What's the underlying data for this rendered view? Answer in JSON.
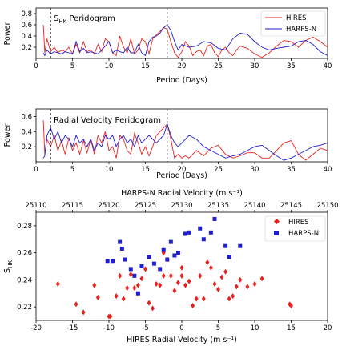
{
  "chart_data": [
    {
      "type": "line",
      "title": "S_HK Peridogram",
      "title_main": "S",
      "title_sub": "HK",
      "title_rest": " Peridogram",
      "xlabel": "Period (Days)",
      "ylabel": "Power",
      "xlim": [
        0,
        40
      ],
      "ylim": [
        0,
        0.9
      ],
      "xticks": [
        0,
        5,
        10,
        15,
        20,
        25,
        30,
        35,
        40
      ],
      "yticks": [
        0.2,
        0.4,
        0.6,
        0.8
      ],
      "vlines": [
        2.0,
        18.0
      ],
      "legend": "top-right",
      "series": [
        {
          "name": "HIRES",
          "color": "#e8231f",
          "x": [
            1.0,
            1.2,
            1.5,
            2.0,
            2.5,
            3.0,
            3.5,
            4.0,
            4.5,
            5.0,
            5.5,
            6.0,
            6.5,
            7.0,
            7.5,
            8.0,
            8.5,
            9.0,
            9.5,
            10.0,
            10.5,
            11.0,
            11.5,
            12.0,
            12.5,
            13.0,
            13.5,
            14.0,
            14.5,
            15.0,
            15.5,
            16.0,
            16.5,
            17.0,
            17.5,
            18.0,
            18.5,
            19.0,
            19.5,
            20.0,
            20.5,
            21.0,
            21.5,
            22.0,
            22.5,
            23.0,
            23.5,
            24.0,
            24.5,
            25.0,
            25.5,
            26.0,
            26.5,
            27.0,
            27.5,
            28.0,
            29.0,
            30.0,
            31.0,
            32.0,
            33.0,
            34.0,
            35.0,
            36.0,
            37.0,
            38.0,
            39.0,
            40.0
          ],
          "y": [
            0.6,
            0.1,
            0.35,
            0.12,
            0.2,
            0.1,
            0.15,
            0.12,
            0.2,
            0.08,
            0.25,
            0.1,
            0.3,
            0.12,
            0.15,
            0.08,
            0.25,
            0.12,
            0.35,
            0.3,
            0.1,
            0.05,
            0.4,
            0.2,
            0.1,
            0.35,
            0.08,
            0.15,
            0.35,
            0.3,
            0.08,
            0.35,
            0.42,
            0.48,
            0.55,
            0.52,
            0.3,
            0.1,
            0.02,
            0.12,
            0.3,
            0.22,
            0.05,
            0.12,
            0.15,
            0.05,
            0.22,
            0.25,
            0.1,
            0.03,
            0.15,
            0.2,
            0.1,
            0.05,
            0.15,
            0.22,
            0.18,
            0.08,
            0.02,
            0.1,
            0.22,
            0.32,
            0.3,
            0.2,
            0.32,
            0.38,
            0.3,
            0.2
          ]
        },
        {
          "name": "HARPS-N",
          "color": "#1f1fd1",
          "x": [
            1.0,
            1.2,
            1.5,
            2.0,
            2.5,
            3.0,
            3.5,
            4.0,
            4.5,
            5.0,
            5.5,
            6.0,
            6.5,
            7.0,
            7.5,
            8.0,
            8.5,
            9.0,
            9.5,
            10.0,
            10.5,
            11.0,
            11.5,
            12.0,
            12.5,
            13.0,
            13.5,
            14.0,
            14.5,
            15.0,
            15.5,
            16.0,
            16.5,
            17.0,
            17.5,
            18.0,
            18.5,
            19.0,
            19.5,
            20.0,
            21.0,
            22.0,
            23.0,
            24.0,
            25.0,
            26.0,
            27.0,
            28.0,
            29.0,
            30.0,
            31.0,
            32.0,
            33.0,
            34.0,
            35.0,
            36.0,
            37.0,
            38.0,
            39.0,
            40.0
          ],
          "y": [
            0.1,
            0.05,
            0.15,
            0.08,
            0.12,
            0.1,
            0.08,
            0.12,
            0.1,
            0.08,
            0.3,
            0.12,
            0.18,
            0.1,
            0.12,
            0.1,
            0.08,
            0.15,
            0.22,
            0.3,
            0.1,
            0.15,
            0.12,
            0.1,
            0.2,
            0.1,
            0.1,
            0.25,
            0.1,
            0.05,
            0.3,
            0.38,
            0.4,
            0.45,
            0.55,
            0.6,
            0.5,
            0.3,
            0.15,
            0.25,
            0.2,
            0.22,
            0.3,
            0.28,
            0.18,
            0.15,
            0.35,
            0.45,
            0.43,
            0.3,
            0.2,
            0.15,
            0.18,
            0.2,
            0.22,
            0.3,
            0.32,
            0.25,
            0.12,
            0.05
          ]
        }
      ]
    },
    {
      "type": "line",
      "title": "Radial Velocity Peridogram",
      "xlabel": "Period (Days)",
      "ylabel": "Power",
      "xlim": [
        0,
        40
      ],
      "ylim": [
        0,
        0.7
      ],
      "xticks": [
        0,
        5,
        10,
        15,
        20,
        25,
        30,
        35,
        40
      ],
      "yticks": [
        0.2,
        0.4,
        0.6
      ],
      "vlines": [
        2.0,
        18.0
      ],
      "series": [
        {
          "name": "HIRES",
          "color": "#e8231f",
          "x": [
            1.0,
            1.2,
            1.5,
            2.0,
            2.5,
            3.0,
            3.5,
            4.0,
            4.5,
            5.0,
            5.5,
            6.0,
            6.5,
            7.0,
            7.5,
            8.0,
            8.5,
            9.0,
            9.5,
            10.0,
            10.5,
            11.0,
            11.5,
            12.0,
            12.5,
            13.0,
            13.5,
            14.0,
            14.5,
            15.0,
            15.5,
            16.0,
            16.5,
            17.0,
            17.5,
            18.0,
            18.5,
            19.0,
            19.5,
            20.0,
            20.5,
            21.0,
            22.0,
            23.0,
            24.0,
            25.0,
            26.0,
            27.0,
            28.0,
            29.0,
            30.0,
            31.0,
            32.0,
            33.0,
            34.0,
            35.0,
            36.0,
            37.0,
            38.0,
            39.0,
            40.0
          ],
          "y": [
            0.55,
            0.1,
            0.3,
            0.2,
            0.35,
            0.15,
            0.28,
            0.1,
            0.32,
            0.15,
            0.25,
            0.1,
            0.28,
            0.12,
            0.3,
            0.1,
            0.35,
            0.25,
            0.4,
            0.15,
            0.2,
            0.05,
            0.35,
            0.3,
            0.15,
            0.1,
            0.38,
            0.25,
            0.1,
            0.2,
            0.08,
            0.2,
            0.35,
            0.4,
            0.45,
            0.5,
            0.3,
            0.05,
            0.1,
            0.05,
            0.08,
            0.05,
            0.15,
            0.08,
            0.18,
            0.22,
            0.1,
            0.05,
            0.08,
            0.12,
            0.12,
            0.05,
            0.05,
            0.15,
            0.25,
            0.28,
            0.1,
            0.02,
            0.1,
            0.18,
            0.15
          ]
        },
        {
          "name": "HARPS-N",
          "color": "#1f1fd1",
          "x": [
            1.0,
            1.2,
            1.5,
            2.0,
            2.5,
            3.0,
            3.5,
            4.0,
            4.5,
            5.0,
            5.5,
            6.0,
            6.5,
            7.0,
            7.5,
            8.0,
            8.5,
            9.0,
            9.5,
            10.0,
            10.5,
            11.0,
            11.5,
            12.0,
            12.5,
            13.0,
            13.5,
            14.0,
            14.5,
            15.0,
            15.5,
            16.0,
            16.5,
            17.0,
            17.5,
            18.0,
            18.5,
            19.0,
            19.5,
            20.0,
            21.0,
            22.0,
            23.0,
            24.0,
            25.0,
            26.0,
            27.0,
            28.0,
            29.0,
            30.0,
            31.0,
            32.0,
            33.0,
            34.0,
            35.0,
            36.0,
            37.0,
            38.0,
            39.0,
            40.0
          ],
          "y": [
            0.05,
            0.08,
            0.35,
            0.45,
            0.3,
            0.4,
            0.25,
            0.35,
            0.3,
            0.2,
            0.35,
            0.25,
            0.3,
            0.2,
            0.3,
            0.15,
            0.25,
            0.2,
            0.35,
            0.3,
            0.35,
            0.2,
            0.3,
            0.35,
            0.25,
            0.3,
            0.2,
            0.35,
            0.25,
            0.3,
            0.35,
            0.3,
            0.25,
            0.3,
            0.35,
            0.5,
            0.35,
            0.25,
            0.2,
            0.25,
            0.35,
            0.3,
            0.2,
            0.15,
            0.1,
            0.05,
            0.08,
            0.1,
            0.15,
            0.2,
            0.22,
            0.15,
            0.08,
            0.02,
            0.05,
            0.1,
            0.15,
            0.2,
            0.22,
            0.25
          ]
        }
      ]
    },
    {
      "type": "scatter",
      "title": "",
      "xlabel": "HIRES Radial Velocity (m s⁻¹)",
      "ylabel": "S_HK",
      "ylabel_main": "S",
      "ylabel_sub": "HK",
      "x2label": "HARPS-N Radial Velocity (m s⁻¹)",
      "xlim": [
        -20,
        20
      ],
      "ylim": [
        0.21,
        0.29
      ],
      "x2lim": [
        25110,
        25150
      ],
      "xticks": [
        -20,
        -15,
        -10,
        -5,
        0,
        5,
        10,
        15,
        20
      ],
      "x2ticks": [
        25110,
        25115,
        25120,
        25125,
        25130,
        25135,
        25140,
        25145,
        25150
      ],
      "yticks": [
        0.22,
        0.24,
        0.26,
        0.28
      ],
      "legend": "top-right",
      "series": [
        {
          "name": "HIRES",
          "color": "#e8231f",
          "marker": "diamond",
          "points": [
            [
              -17,
              0.237
            ],
            [
              -14.5,
              0.222
            ],
            [
              -13.5,
              0.216
            ],
            [
              -12,
              0.236
            ],
            [
              -11.5,
              0.227
            ],
            [
              -10,
              0.213
            ],
            [
              -9.8,
              0.213
            ],
            [
              -9,
              0.228
            ],
            [
              -8.5,
              0.243
            ],
            [
              -8,
              0.226
            ],
            [
              -7.5,
              0.234
            ],
            [
              -7,
              0.244
            ],
            [
              -6.5,
              0.234
            ],
            [
              -6,
              0.236
            ],
            [
              -5.5,
              0.241
            ],
            [
              -5,
              0.248
            ],
            [
              -4.5,
              0.223
            ],
            [
              -4,
              0.219
            ],
            [
              -3.5,
              0.237
            ],
            [
              -3,
              0.236
            ],
            [
              -2.5,
              0.243
            ],
            [
              -2,
              0.255
            ],
            [
              -1.5,
              0.243
            ],
            [
              -1,
              0.232
            ],
            [
              -0.5,
              0.238
            ],
            [
              0,
              0.249
            ],
            [
              0,
              0.243
            ],
            [
              0.5,
              0.236
            ],
            [
              1,
              0.239
            ],
            [
              1.5,
              0.221
            ],
            [
              2,
              0.226
            ],
            [
              2.5,
              0.243
            ],
            [
              3,
              0.226
            ],
            [
              3.5,
              0.253
            ],
            [
              4,
              0.249
            ],
            [
              4.5,
              0.237
            ],
            [
              5,
              0.233
            ],
            [
              5.5,
              0.242
            ],
            [
              6,
              0.246
            ],
            [
              6.5,
              0.226
            ],
            [
              7,
              0.228
            ],
            [
              7.5,
              0.235
            ],
            [
              8,
              0.24
            ],
            [
              9,
              0.235
            ],
            [
              10,
              0.237
            ],
            [
              11,
              0.241
            ],
            [
              14.8,
              0.222
            ],
            [
              15,
              0.221
            ],
            [
              -2.5,
              0.26
            ]
          ]
        },
        {
          "name": "HARPS-N",
          "color": "#1f1fd1",
          "marker": "square",
          "points": [
            [
              -8.5,
              0.268
            ],
            [
              -8.2,
              0.263
            ],
            [
              -7.8,
              0.255
            ],
            [
              -7,
              0.248
            ],
            [
              -5.5,
              0.25
            ],
            [
              -4.5,
              0.257
            ],
            [
              -3.8,
              0.252
            ],
            [
              -3,
              0.248
            ],
            [
              -2.5,
              0.262
            ],
            [
              -2,
              0.255
            ],
            [
              -1.5,
              0.268
            ],
            [
              -1,
              0.258
            ],
            [
              -0.5,
              0.26
            ],
            [
              0.5,
              0.274
            ],
            [
              1,
              0.275
            ],
            [
              2.5,
              0.278
            ],
            [
              3,
              0.27
            ],
            [
              4,
              0.275
            ],
            [
              4.5,
              0.285
            ],
            [
              6,
              0.265
            ],
            [
              6.5,
              0.257
            ],
            [
              8,
              0.265
            ],
            [
              -9.5,
              0.254
            ],
            [
              -10.2,
              0.254
            ],
            [
              -6.5,
              0.243
            ],
            [
              -6,
              0.23
            ]
          ]
        }
      ]
    }
  ]
}
